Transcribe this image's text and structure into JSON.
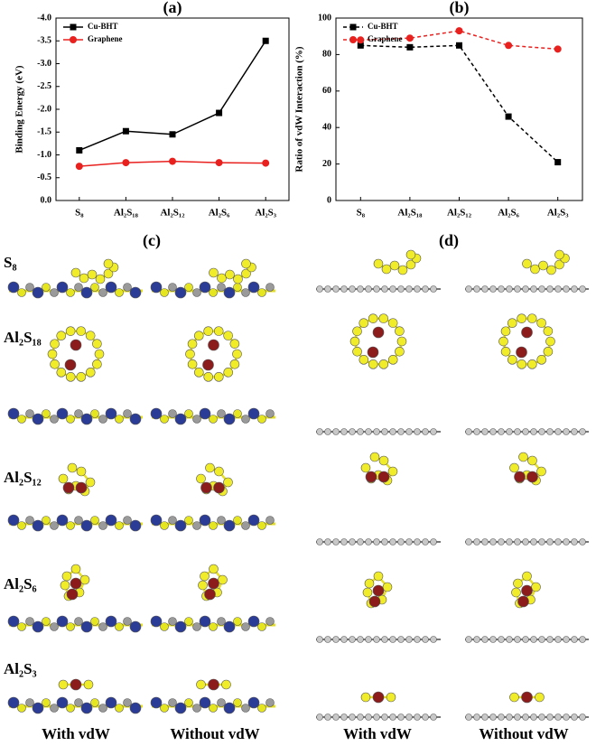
{
  "chart_data": [
    {
      "type": "line",
      "title": "(a)",
      "ylabel": "Binding Energy (eV)",
      "categories": [
        "S₈",
        "Al₂S₁₈",
        "Al₂S₁₂",
        "Al₂S₆",
        "Al₂S₃"
      ],
      "ylim": [
        0,
        -4.0
      ],
      "yticks": [
        {
          "value": 0,
          "label": "0.0"
        },
        {
          "value": -0.5,
          "label": "-0.5"
        },
        {
          "value": -1.0,
          "label": "-1.0"
        },
        {
          "value": -1.5,
          "label": "-1.5"
        },
        {
          "value": -2.0,
          "label": "-2.0"
        },
        {
          "value": -2.5,
          "label": "-2.5"
        },
        {
          "value": -3.0,
          "label": "-3.0"
        },
        {
          "value": -3.5,
          "label": "-3.5"
        },
        {
          "value": -4.0,
          "label": "-4.0"
        }
      ],
      "legend": "upper left",
      "series": [
        {
          "name": "Cu-BHT",
          "color": "#000000",
          "marker": "square",
          "line": "solid",
          "values": [
            -1.1,
            -1.52,
            -1.45,
            -1.92,
            -3.5
          ]
        },
        {
          "name": "Graphene",
          "color": "#e8201e",
          "marker": "circle",
          "line": "solid",
          "values": [
            -0.75,
            -0.83,
            -0.86,
            -0.83,
            -0.82
          ]
        }
      ]
    },
    {
      "type": "line",
      "title": "(b)",
      "ylabel": "Ratio of vdW Interaction (%)",
      "categories": [
        "S₈",
        "Al₂S₁₈",
        "Al₂S₁₂",
        "Al₂S₆",
        "Al₂S₃"
      ],
      "ylim": [
        0,
        100
      ],
      "yticks": [
        0,
        20,
        40,
        60,
        80,
        100
      ],
      "legend": "upper left",
      "series": [
        {
          "name": "Cu-BHT",
          "color": "#000000",
          "marker": "square",
          "line": "dashed",
          "values": [
            85,
            84,
            85,
            46,
            21
          ]
        },
        {
          "name": "Graphene",
          "color": "#e8201e",
          "marker": "circle",
          "line": "dashed",
          "values": [
            88,
            89,
            93,
            85,
            83
          ]
        }
      ]
    }
  ],
  "panels": {
    "c": "(c)",
    "d": "(d)",
    "rows": [
      "S₈",
      "Al₂S₁₈",
      "Al₂S₁₂",
      "Al₂S₆",
      "Al₂S₃"
    ],
    "columns": [
      "With vdW",
      "Without vdW",
      "With vdW",
      "Without vdW"
    ]
  }
}
